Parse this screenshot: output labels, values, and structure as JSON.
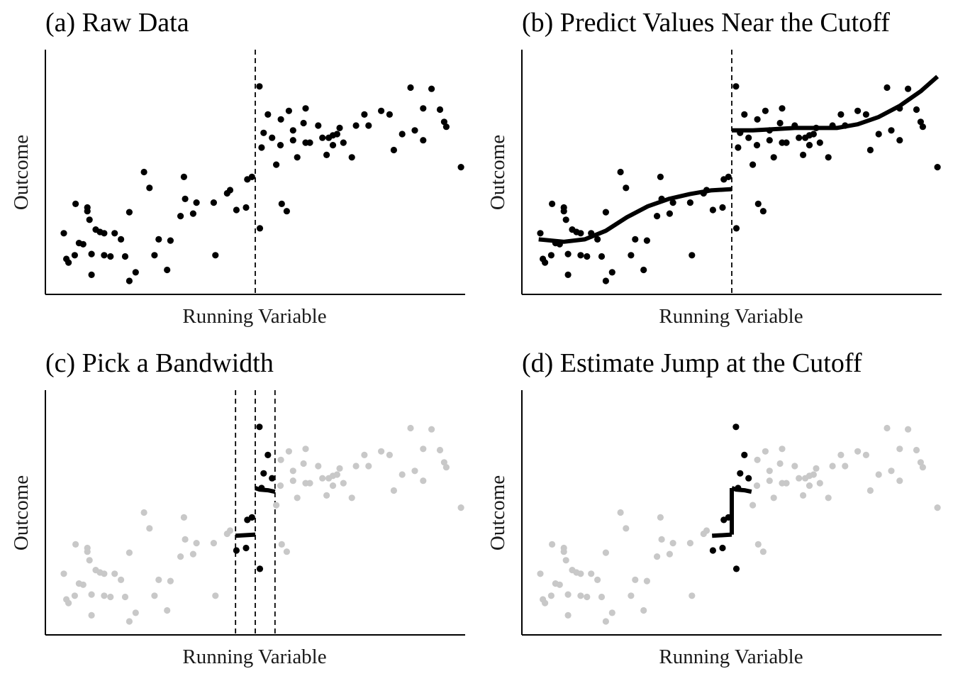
{
  "chart_data": [
    {
      "type": "scatter",
      "title": "(a) Raw Data",
      "xlabel": "Running Variable",
      "ylabel": "Outcome",
      "xlim": [
        0,
        1
      ],
      "ylim": [
        0,
        1
      ],
      "axis_ticks": false,
      "cutoff_lines": [
        0.5
      ]
    },
    {
      "type": "scatter",
      "title": "(b) Predict Values Near the Cutoff",
      "xlabel": "Running Variable",
      "ylabel": "Outcome",
      "xlim": [
        0,
        1
      ],
      "ylim": [
        0,
        1
      ],
      "axis_ticks": false,
      "cutoff_lines": [
        0.5
      ],
      "fit_curves": [
        {
          "x": [
            0.04,
            0.1,
            0.15,
            0.2,
            0.25,
            0.3,
            0.35,
            0.4,
            0.45,
            0.5
          ],
          "y": [
            0.225,
            0.215,
            0.225,
            0.26,
            0.315,
            0.36,
            0.39,
            0.41,
            0.425,
            0.43
          ]
        },
        {
          "x": [
            0.5,
            0.55,
            0.6,
            0.65,
            0.7,
            0.75,
            0.8,
            0.85,
            0.9,
            0.95,
            0.99
          ],
          "y": [
            0.67,
            0.67,
            0.675,
            0.68,
            0.68,
            0.68,
            0.695,
            0.725,
            0.77,
            0.83,
            0.89
          ]
        }
      ]
    },
    {
      "type": "scatter",
      "title": "(c) Pick a Bandwidth",
      "xlabel": "Running Variable",
      "ylabel": "Outcome",
      "xlim": [
        0,
        1
      ],
      "ylim": [
        0,
        1
      ],
      "axis_ticks": false,
      "cutoff_lines": [
        0.453,
        0.5,
        0.547
      ],
      "bandwidth": [
        0.453,
        0.547
      ],
      "fit_curves": [
        {
          "x": [
            0.453,
            0.5
          ],
          "y": [
            0.405,
            0.41
          ]
        },
        {
          "x": [
            0.5,
            0.51,
            0.53,
            0.547
          ],
          "y": [
            0.6,
            0.594,
            0.591,
            0.585
          ]
        }
      ]
    },
    {
      "type": "scatter",
      "title": "(d) Estimate Jump at the Cutoff",
      "xlabel": "Running Variable",
      "ylabel": "Outcome",
      "xlim": [
        0,
        1
      ],
      "ylim": [
        0,
        1
      ],
      "axis_ticks": false,
      "cutoff_lines": [],
      "bandwidth": [
        0.453,
        0.547
      ],
      "fit_curves": [
        {
          "x": [
            0.453,
            0.5
          ],
          "y": [
            0.405,
            0.41
          ]
        },
        {
          "x": [
            0.5,
            0.5
          ],
          "y": [
            0.41,
            0.6
          ]
        },
        {
          "x": [
            0.5,
            0.51,
            0.53,
            0.547
          ],
          "y": [
            0.6,
            0.594,
            0.591,
            0.585
          ]
        }
      ]
    }
  ],
  "points": {
    "x": [
      0.044,
      0.055,
      0.05,
      0.07,
      0.072,
      0.08,
      0.09,
      0.1,
      0.1,
      0.105,
      0.11,
      0.11,
      0.12,
      0.13,
      0.14,
      0.14,
      0.155,
      0.165,
      0.18,
      0.19,
      0.2,
      0.2,
      0.215,
      0.235,
      0.248,
      0.26,
      0.27,
      0.29,
      0.298,
      0.322,
      0.33,
      0.333,
      0.352,
      0.36,
      0.401,
      0.405,
      0.433,
      0.44,
      0.455,
      0.478,
      0.481,
      0.492,
      0.511,
      0.51,
      0.515,
      0.52,
      0.53,
      0.54,
      0.55,
      0.56,
      0.561,
      0.563,
      0.575,
      0.58,
      0.59,
      0.59,
      0.6,
      0.615,
      0.62,
      0.62,
      0.63,
      0.65,
      0.66,
      0.67,
      0.675,
      0.685,
      0.685,
      0.695,
      0.701,
      0.71,
      0.73,
      0.74,
      0.76,
      0.77,
      0.8,
      0.82,
      0.83,
      0.85,
      0.87,
      0.88,
      0.9,
      0.9,
      0.92,
      0.94,
      0.95,
      0.955,
      0.99
    ],
    "y": [
      0.25,
      0.13,
      0.145,
      0.16,
      0.37,
      0.21,
      0.205,
      0.355,
      0.34,
      0.305,
      0.165,
      0.08,
      0.265,
      0.255,
      0.25,
      0.16,
      0.155,
      0.25,
      0.225,
      0.155,
      0.055,
      0.336,
      0.09,
      0.5,
      0.435,
      0.16,
      0.225,
      0.1,
      0.22,
      0.32,
      0.48,
      0.39,
      0.33,
      0.375,
      0.375,
      0.16,
      0.413,
      0.426,
      0.345,
      0.355,
      0.47,
      0.48,
      0.27,
      0.85,
      0.6,
      0.66,
      0.735,
      0.64,
      0.53,
      0.61,
      0.715,
      0.37,
      0.34,
      0.75,
      0.67,
      0.63,
      0.56,
      0.7,
      0.76,
      0.62,
      0.62,
      0.69,
      0.64,
      0.57,
      0.64,
      0.61,
      0.65,
      0.655,
      0.68,
      0.62,
      0.56,
      0.69,
      0.735,
      0.69,
      0.75,
      0.735,
      0.59,
      0.655,
      0.845,
      0.67,
      0.76,
      0.63,
      0.84,
      0.755,
      0.705,
      0.685,
      0.52
    ]
  },
  "colors": {
    "point": "#000000",
    "muted_point": "#c8c8c8",
    "axis": "#000000"
  }
}
